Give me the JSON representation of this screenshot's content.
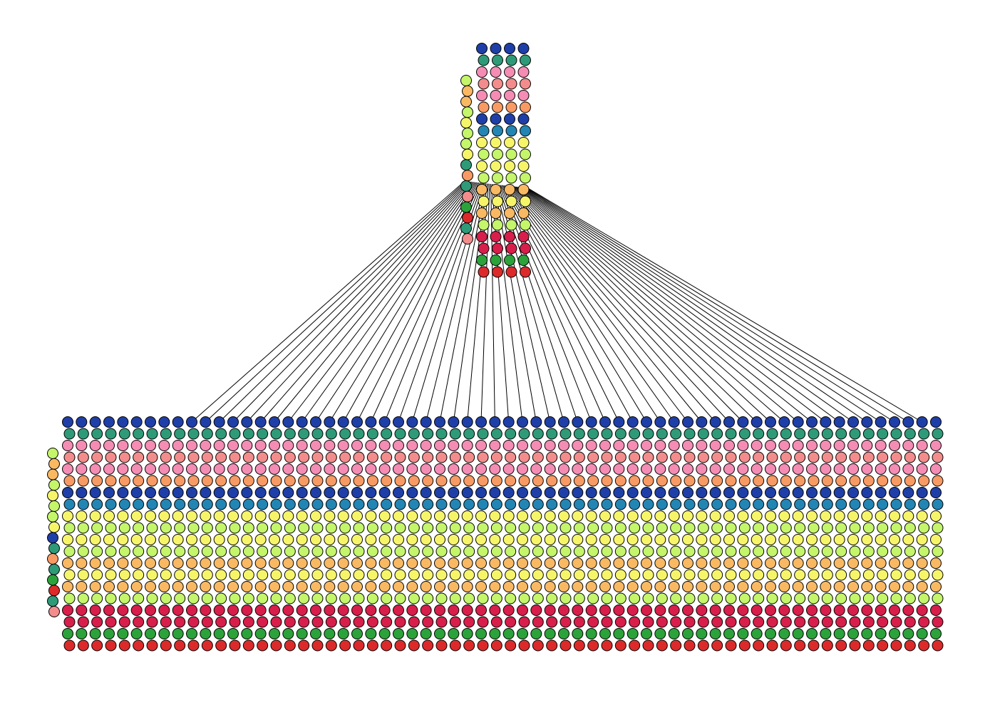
{
  "diagram": {
    "type": "network-graph",
    "description_free": true,
    "node_stroke": "#000000",
    "edge_color": "#000000",
    "background": "#ffffff",
    "palette": {
      "navy": "#1f3fa8",
      "teal": "#2f9a78",
      "pink": "#f48cb4",
      "salmon": "#f38c8c",
      "orange": "#f89a64",
      "blue": "#2385b3",
      "yellow": "#f6f56a",
      "lime": "#c4f56a",
      "light_orange": "#f9b963",
      "crimson": "#d81e4a",
      "green": "#2ca23a",
      "red": "#dc2a2a"
    },
    "top_cluster": {
      "columns": 4,
      "layer_colors": [
        "navy",
        "teal",
        "pink",
        "salmon",
        "pink",
        "orange",
        "navy",
        "blue",
        "yellow",
        "lime",
        "yellow",
        "lime",
        "light_orange",
        "yellow",
        "light_orange",
        "lime",
        "crimson",
        "crimson",
        "green",
        "red"
      ],
      "side_column_colors": [
        "lime",
        "light_orange",
        "light_orange",
        "lime",
        "yellow",
        "lime",
        "lime",
        "yellow",
        "teal",
        "orange",
        "teal",
        "salmon",
        "green",
        "red",
        "teal",
        "salmon"
      ]
    },
    "bottom_cluster": {
      "columns": 64,
      "layer_colors": [
        "navy",
        "teal",
        "pink",
        "salmon",
        "pink",
        "orange",
        "navy",
        "blue",
        "yellow",
        "lime",
        "yellow",
        "lime",
        "light_orange",
        "yellow",
        "light_orange",
        "lime",
        "crimson",
        "crimson",
        "green",
        "red"
      ],
      "side_column_colors": [
        "lime",
        "light_orange",
        "light_orange",
        "lime",
        "yellow",
        "lime",
        "lime",
        "yellow",
        "navy",
        "teal",
        "orange",
        "teal",
        "green",
        "red",
        "teal",
        "salmon"
      ]
    },
    "edges": {
      "from": "top_cluster_side_column",
      "to": "bottom_cluster_top_row",
      "count": 54
    }
  }
}
